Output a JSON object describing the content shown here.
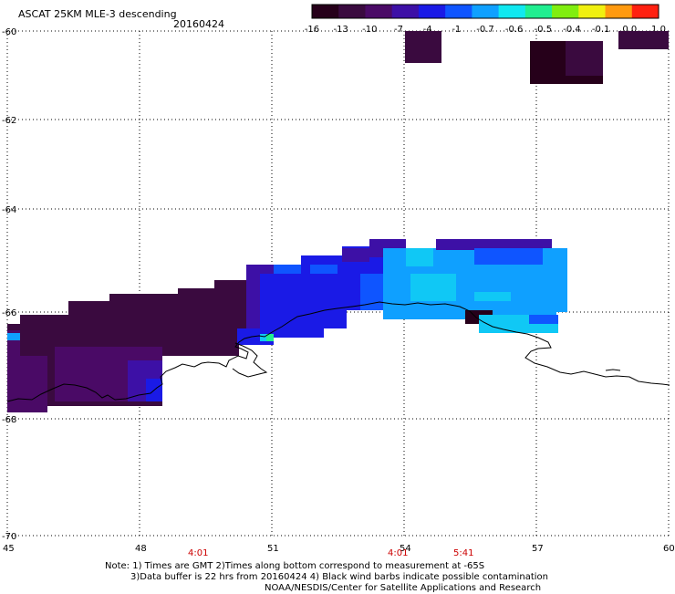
{
  "header": {
    "title": "ASCAT 25KM MLE-3 descending",
    "date": "20160424"
  },
  "colorbar": {
    "labels": [
      "-16",
      "-13",
      "-10",
      "-7",
      "-4",
      "-1",
      "-0.7",
      "-0.6",
      "-0.5",
      "-0.4",
      "-0.1",
      "0.0",
      "1.0"
    ],
    "colors": [
      "#26001a",
      "#3a0a3f",
      "#4a0a66",
      "#3d10a6",
      "#1a1ae6",
      "#0f55ff",
      "#0fa0ff",
      "#10e8f0",
      "#20ee90",
      "#80ee10",
      "#f0f010",
      "#ff9a10",
      "#ff2010"
    ]
  },
  "axes": {
    "lon_labels": [
      "45",
      "48",
      "51",
      "54",
      "57",
      "60"
    ],
    "lat_labels": [
      "-60",
      "-62",
      "-64",
      "-66",
      "-68",
      "-70"
    ]
  },
  "time_labels": [
    "4:01",
    "4:01",
    "5:41"
  ],
  "notes": [
    "Note: 1) Times are GMT 2)Times along bottom correspond to measurement at -65S",
    "3)Data buffer is 22 hrs from 20160424 4) Black wind barbs indicate possible contamination",
    "NOAA/NESDIS/Center for Satellite Applications and Research"
  ]
}
